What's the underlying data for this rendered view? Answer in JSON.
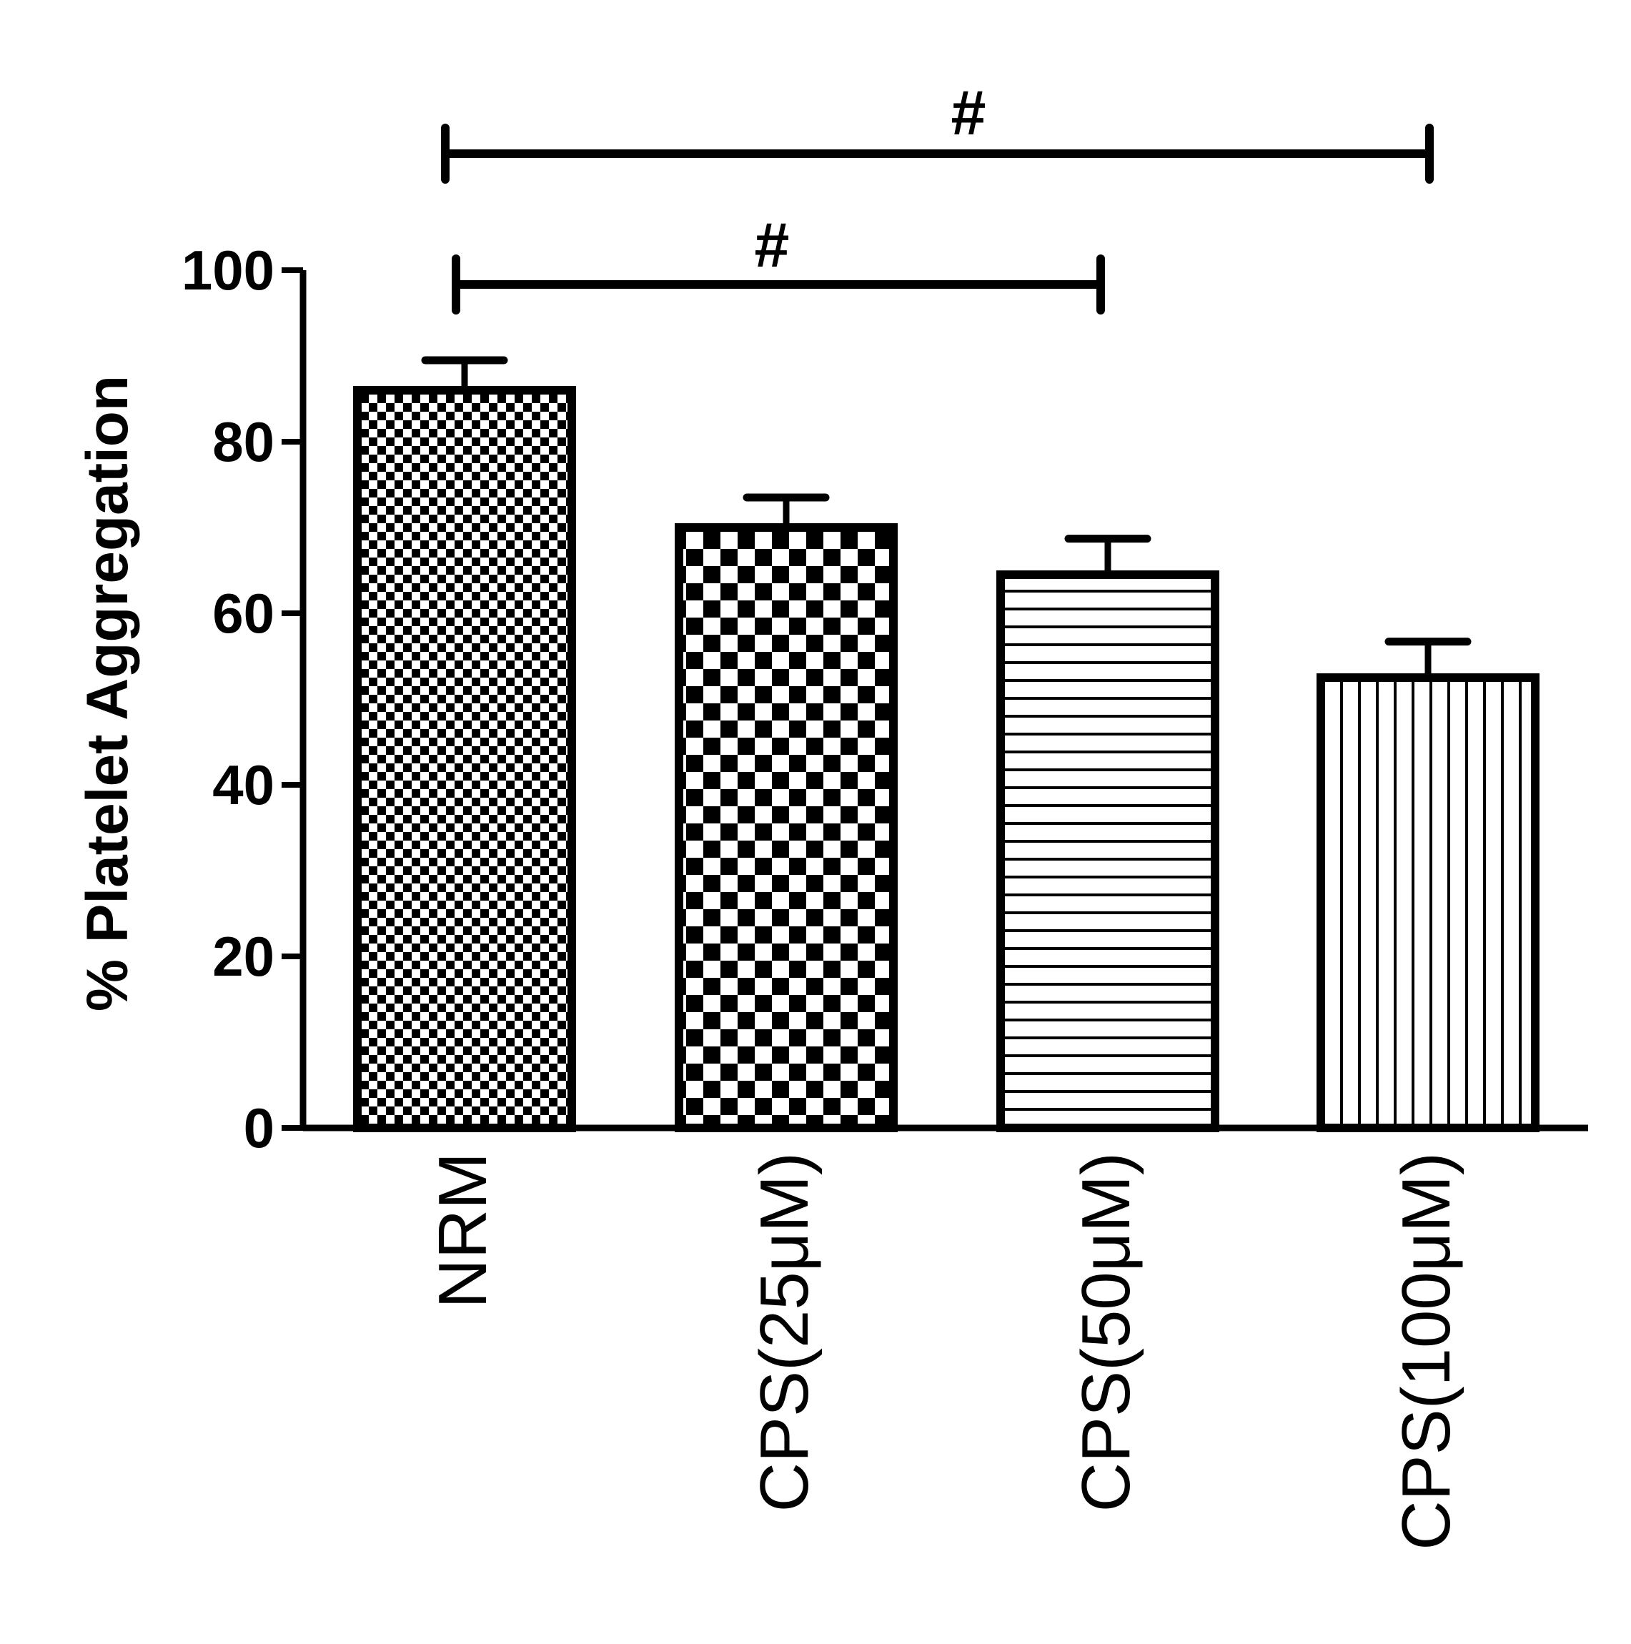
{
  "chart_data": {
    "type": "bar",
    "title": "",
    "xlabel": "",
    "ylabel": "% Platelet Aggregation",
    "ylim": [
      0,
      100
    ],
    "yticks": [
      "0",
      "20",
      "40",
      "60",
      "80",
      "100"
    ],
    "grid": false,
    "categories": [
      "NRM",
      "CPS(25μM)",
      "CPS(50μM)",
      "CPS(100μM)"
    ],
    "values": [
      86,
      70,
      64.5,
      52.5
    ],
    "errors": [
      3.5,
      3.5,
      4.2,
      4.2
    ],
    "fill_patterns": [
      "fine-checker",
      "coarse-checker",
      "horizontal-lines",
      "vertical-lines"
    ],
    "significance": [
      {
        "from": 0,
        "to": 3,
        "label": "#"
      },
      {
        "from": 0,
        "to": 2,
        "label": "#"
      }
    ],
    "colors": {
      "stroke": "#000000",
      "background": "#ffffff"
    }
  }
}
